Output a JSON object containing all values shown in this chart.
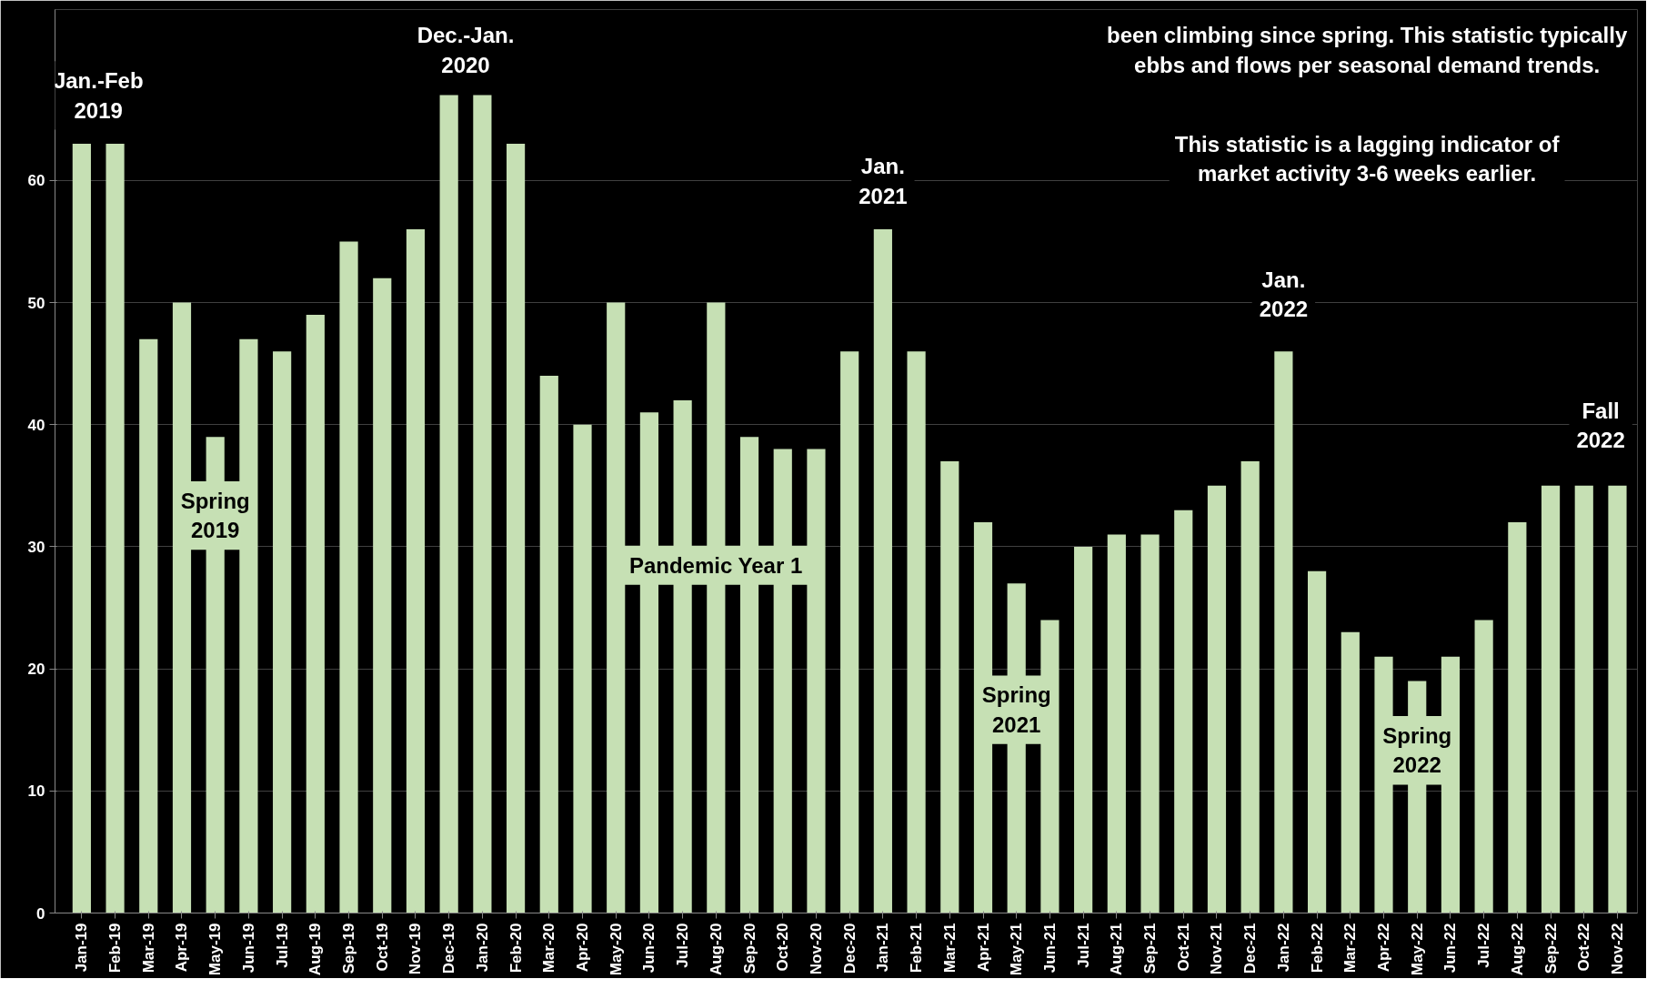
{
  "chart_data": {
    "type": "bar",
    "categories": [
      "Jan-19",
      "Feb-19",
      "Mar-19",
      "Apr-19",
      "May-19",
      "Jun-19",
      "Jul-19",
      "Aug-19",
      "Sep-19",
      "Oct-19",
      "Nov-19",
      "Dec-19",
      "Jan-20",
      "Feb-20",
      "Mar-20",
      "Apr-20",
      "May-20",
      "Jun-20",
      "Jul-20",
      "Aug-20",
      "Sep-20",
      "Oct-20",
      "Nov-20",
      "Dec-20",
      "Jan-21",
      "Feb-21",
      "Mar-21",
      "Apr-21",
      "May-21",
      "Jun-21",
      "Jul-21",
      "Aug-21",
      "Sep-21",
      "Oct-21",
      "Nov-21",
      "Dec-21",
      "Jan-22",
      "Feb-22",
      "Mar-22",
      "Apr-22",
      "May-22",
      "Jun-22",
      "Jul-22",
      "Aug-22",
      "Sep-22",
      "Oct-22",
      "Nov-22"
    ],
    "values": [
      63,
      63,
      47,
      50,
      39,
      47,
      46,
      49,
      55,
      52,
      56,
      67,
      67,
      63,
      44,
      40,
      50,
      41,
      42,
      50,
      39,
      38,
      38,
      46,
      56,
      46,
      37,
      32,
      27,
      24,
      30,
      31,
      31,
      33,
      35,
      37,
      46,
      28,
      23,
      21,
      19,
      21,
      24,
      32,
      35,
      35,
      35
    ],
    "color": "#c6e0b4",
    "ylim": [
      0,
      74
    ],
    "yticks": [
      0,
      10,
      20,
      30,
      40,
      50,
      60
    ],
    "grid": "y",
    "annotations": [
      "Jan.-Feb\n2019",
      "Dec.-Jan.\n2020",
      "Spring\n2019",
      "Pandemic Year 1",
      "Jan.\n2021",
      "Spring\n2021",
      "Jan.\n2022",
      "Spring\n2022",
      "Fall\n2022",
      "been climbing since spring. This statistic typically\nebbs and flows per seasonal demand trends.",
      "This statistic is a lagging indicator of\nmarket activity 3-6 weeks earlier."
    ]
  }
}
